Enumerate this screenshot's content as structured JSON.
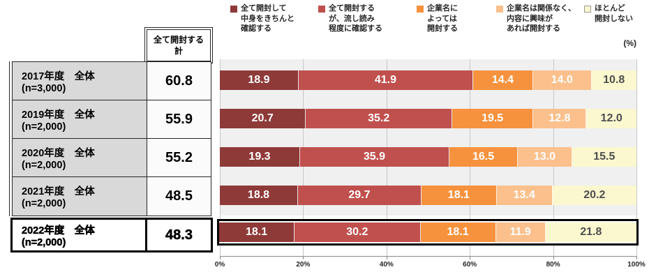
{
  "legend_note": "(%)",
  "table": {
    "header": "全て開封する\n計",
    "rows": [
      {
        "label": "2017年度　全体　(n=3,000)",
        "total": "60.8"
      },
      {
        "label": "2019年度　全体　(n=2,000)",
        "total": "55.9"
      },
      {
        "label": "2020年度　全体　(n=2,000)",
        "total": "55.2"
      },
      {
        "label": "2021年度　全体　(n=2,000)",
        "total": "48.5"
      },
      {
        "label": "2022年度　全体　(n=2,000)",
        "total": "48.3"
      }
    ]
  },
  "chart_data": {
    "type": "stacked-bar-horizontal",
    "title": "",
    "unit": "%",
    "categories": [
      "2017年度　全体　(n=3,000)",
      "2019年度　全体　(n=2,000)",
      "2020年度　全体　(n=2,000)",
      "2021年度　全体　(n=2,000)",
      "2022年度　全体　(n=2,000)"
    ],
    "series": [
      {
        "name": "全て開封して中身をきちんと確認する",
        "legend_label": "全て開封して\n中身をきちんと\n確認する",
        "color": "#8e3a38",
        "label_color": "#ffffff",
        "values": [
          18.9,
          20.7,
          19.3,
          18.8,
          18.1
        ]
      },
      {
        "name": "全て開封するが、流し読み程度に確認する",
        "legend_label": "全て開封する\nが、流し読み\n程度に確認する",
        "color": "#c0504d",
        "label_color": "#ffffff",
        "values": [
          41.9,
          35.2,
          35.9,
          29.7,
          30.2
        ]
      },
      {
        "name": "企業名によっては開封する",
        "legend_label": "企業名に\nよっては\n開封する",
        "color": "#f6923e",
        "label_color": "#ffffff",
        "values": [
          14.4,
          19.5,
          16.5,
          18.1,
          18.1
        ]
      },
      {
        "name": "企業名は関係なく、内容に興味があれば開封する",
        "legend_label": "企業名は関係なく、\n内容に興味が\nあれば開封する",
        "color": "#fbc08c",
        "label_color": "#ffffff",
        "values": [
          14.0,
          12.8,
          13.0,
          13.4,
          11.9
        ]
      },
      {
        "name": "ほとんど開封しない",
        "legend_label": "ほとんど\n開封しない",
        "color": "#fbf8d0",
        "label_color": "#4d4d4d",
        "values": [
          10.8,
          12.0,
          15.5,
          20.2,
          21.8
        ]
      }
    ],
    "totals_open_all": [
      60.8,
      55.9,
      55.2,
      48.5,
      48.3
    ],
    "x_ticks": [
      "0%",
      "20%",
      "40%",
      "60%",
      "80%",
      "100%"
    ],
    "xlim": [
      0,
      100
    ],
    "highlighted_row": "2022年度　全体　(n=2,000)"
  }
}
